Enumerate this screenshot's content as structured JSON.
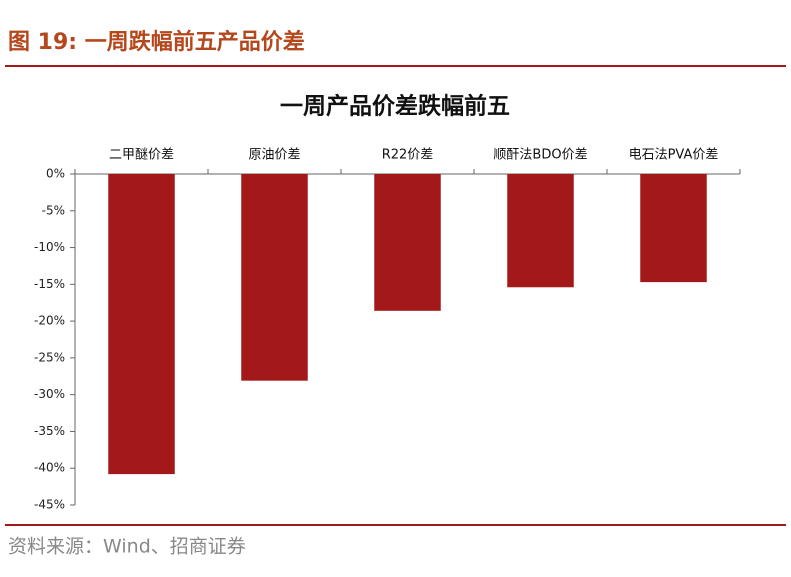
{
  "header": {
    "title": "图 19:  一周跌幅前五产品价差"
  },
  "chart_data": {
    "type": "bar",
    "title": "一周产品价差跌幅前五",
    "categories": [
      "二甲醚价差",
      "原油价差",
      "R22价差",
      "顺酐法BDO价差",
      "电石法PVA价差"
    ],
    "values": [
      -40.8,
      -28.1,
      -18.6,
      -15.4,
      -14.7
    ],
    "color": "#a31919",
    "ylim": [
      -45,
      0
    ],
    "yticks": [
      {
        "value": 0,
        "label": "0%"
      },
      {
        "value": -5,
        "label": "-5%"
      },
      {
        "value": -10,
        "label": "-10%"
      },
      {
        "value": -15,
        "label": "-15%"
      },
      {
        "value": -20,
        "label": "-20%"
      },
      {
        "value": -25,
        "label": "-25%"
      },
      {
        "value": -30,
        "label": "-30%"
      },
      {
        "value": -35,
        "label": "-35%"
      },
      {
        "value": -40,
        "label": "-40%"
      },
      {
        "value": -45,
        "label": "-45%"
      }
    ],
    "grid": false
  },
  "footer": {
    "source": "资料来源：Wind、招商证券"
  }
}
